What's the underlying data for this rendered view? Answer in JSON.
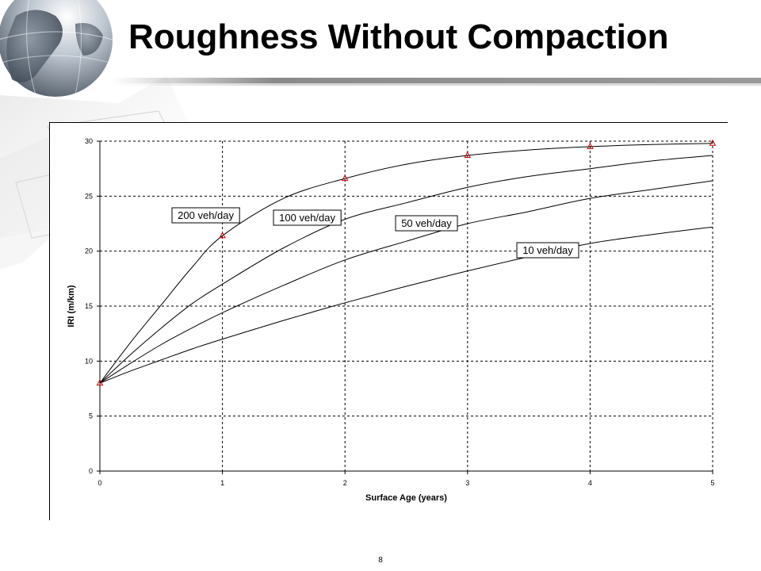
{
  "slide": {
    "title": "Roughness Without Compaction",
    "page_number": "8"
  },
  "colors": {
    "line": "#000000",
    "marker": "#cc0000",
    "grid": "#000000",
    "title": "#000000"
  },
  "chart_data": {
    "type": "line",
    "title": "",
    "xlabel": "Surface Age (years)",
    "ylabel": "IRI (m/km)",
    "xlim": [
      0,
      5
    ],
    "ylim": [
      0,
      30
    ],
    "xticks": [
      0,
      1,
      2,
      3,
      4,
      5
    ],
    "yticks": [
      0,
      5,
      10,
      15,
      20,
      25,
      30
    ],
    "grid": true,
    "series": [
      {
        "name": "200 veh/day",
        "x": [
          0,
          0.25,
          0.5,
          0.75,
          1,
          1.5,
          2,
          2.5,
          3,
          3.5,
          4,
          4.5,
          5
        ],
        "values": [
          8,
          11.7,
          15.1,
          18.5,
          21.4,
          24.8,
          26.6,
          27.9,
          28.7,
          29.2,
          29.5,
          29.7,
          29.8
        ],
        "markers": [
          0,
          1,
          2,
          3,
          4,
          5
        ]
      },
      {
        "name": "100 veh/day",
        "x": [
          0,
          0.25,
          0.5,
          0.75,
          1,
          1.5,
          2,
          2.5,
          3,
          3.5,
          4,
          4.5,
          5
        ],
        "values": [
          8,
          10.6,
          13.0,
          15.2,
          17.0,
          20.3,
          22.9,
          24.4,
          25.8,
          26.8,
          27.5,
          28.2,
          28.7
        ]
      },
      {
        "name": "50 veh/day",
        "x": [
          0,
          0.25,
          0.5,
          0.75,
          1,
          1.5,
          2,
          2.5,
          3,
          3.5,
          4,
          4.5,
          5
        ],
        "values": [
          8,
          9.8,
          11.5,
          13.0,
          14.4,
          16.9,
          19.2,
          20.9,
          22.5,
          23.6,
          24.8,
          25.6,
          26.4
        ]
      },
      {
        "name": "10 veh/day",
        "x": [
          0,
          0.25,
          0.5,
          0.75,
          1,
          1.5,
          2,
          2.5,
          3,
          3.5,
          4,
          4.5,
          5
        ],
        "values": [
          8,
          9.1,
          10.1,
          11.1,
          12.0,
          13.7,
          15.3,
          16.8,
          18.2,
          19.5,
          20.7,
          21.5,
          22.2
        ]
      }
    ],
    "annotations": [
      {
        "text": "200 veh/day",
        "series": 0
      },
      {
        "text": "100 veh/day",
        "series": 1
      },
      {
        "text": "50 veh/day",
        "series": 2
      },
      {
        "text": "10 veh/day",
        "series": 3
      }
    ]
  }
}
